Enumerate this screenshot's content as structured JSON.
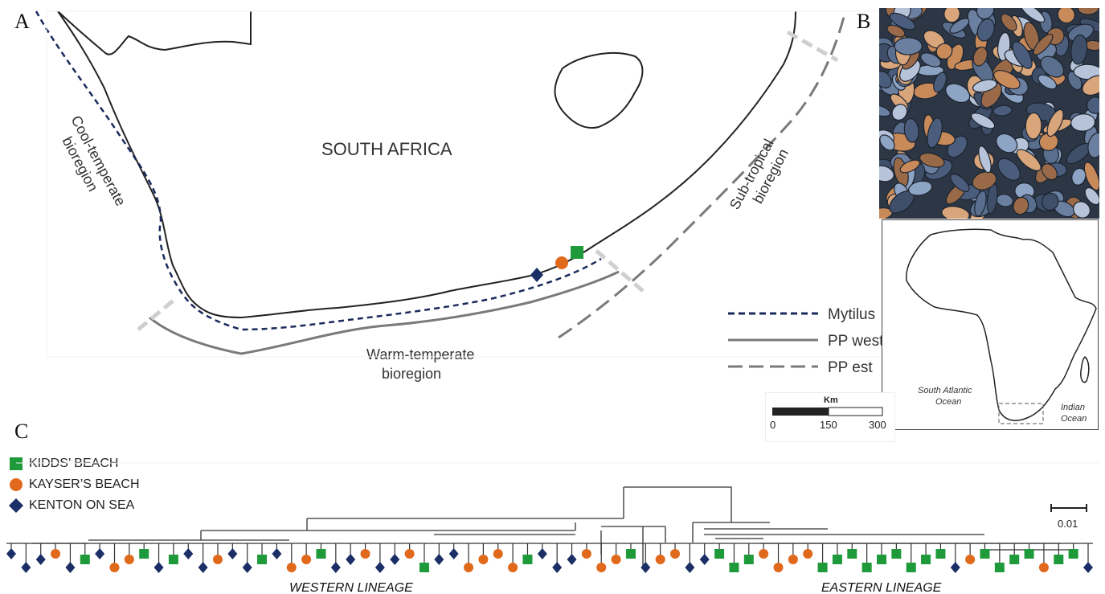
{
  "panels": {
    "a": "A",
    "b": "B",
    "c": "C"
  },
  "map": {
    "country": "SOUTH AFRICA",
    "regions": {
      "cool_line1": "Cool-temperate",
      "cool_line2": "bioregion",
      "warm_line1": "Warm-temperate",
      "warm_line2": "bioregion",
      "sub_line1": "Sub-tropical",
      "sub_line2": "bioregion"
    },
    "legend": [
      {
        "label": "Mytilus",
        "style": "dashed",
        "color": "#1b2a5c"
      },
      {
        "label": "PP west",
        "style": "solid",
        "color": "#7a7a7a"
      },
      {
        "label": "PP est",
        "style": "longdash",
        "color": "#7a7a7a"
      }
    ],
    "scale": {
      "unit": "Km",
      "ticks": [
        "0",
        "150",
        "300"
      ]
    },
    "site_markers": [
      {
        "site": "KENTON ON SEA",
        "shape": "diamond"
      },
      {
        "site": "KAYSER'S BEACH",
        "shape": "circle"
      },
      {
        "site": "KIDDS' BEACH",
        "shape": "square"
      }
    ]
  },
  "inset": {
    "ocean_left_1": "South Atlantic",
    "ocean_left_2": "Ocean",
    "ocean_right_1": "Indian",
    "ocean_right_2": "Ocean"
  },
  "tree": {
    "legend": [
      {
        "label": "KIDDS’ BEACH",
        "shape": "square",
        "color": "#1f9a3a"
      },
      {
        "label": "KAYSER’S BEACH",
        "shape": "circle",
        "color": "#e0691c"
      },
      {
        "label": "KENTON ON SEA",
        "shape": "diamond",
        "color": "#1b2f66"
      }
    ],
    "scale_label": "0.01",
    "western": "WESTERN LINEAGE",
    "eastern": "EASTERN LINEAGE",
    "tips": [
      "D",
      "D",
      "D",
      "C",
      "D",
      "S",
      "D",
      "C",
      "C",
      "S",
      "D",
      "S",
      "D",
      "D",
      "C",
      "D",
      "D",
      "S",
      "D",
      "C",
      "C",
      "S",
      "D",
      "D",
      "C",
      "D",
      "D",
      "C",
      "S",
      "D",
      "D",
      "C",
      "C",
      "C",
      "C",
      "S",
      "D",
      "D",
      "D",
      "C",
      "C",
      "C",
      "S",
      "D",
      "C",
      "C",
      "D",
      "D",
      "S",
      "S",
      "S",
      "C",
      "C",
      "C",
      "C",
      "S",
      "S",
      "S",
      "S",
      "S",
      "S",
      "S",
      "S",
      "S",
      "D",
      "C",
      "S",
      "S",
      "S",
      "S",
      "C",
      "S",
      "S",
      "D"
    ],
    "colors": {
      "S": "#1f9a3a",
      "C": "#e0691c",
      "D": "#1b2f66"
    }
  }
}
